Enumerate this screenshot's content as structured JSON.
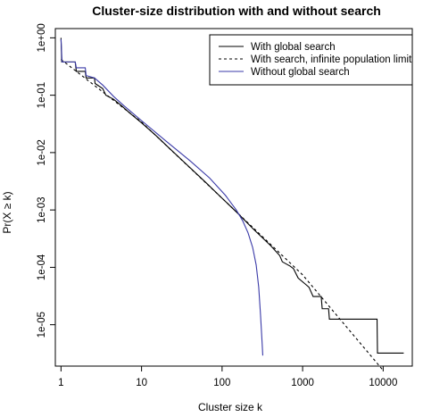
{
  "chart_data": {
    "type": "line",
    "title": "Cluster-size distribution with and without search",
    "xlabel": "Cluster size k",
    "ylabel": "Pr(X ≥ k)",
    "x_scale": "log",
    "y_scale": "log",
    "xlim": [
      0.85,
      23000
    ],
    "ylim": [
      1.9e-06,
      1.45
    ],
    "x_ticks": [
      {
        "value": 1,
        "label": "1"
      },
      {
        "value": 10,
        "label": "10"
      },
      {
        "value": 100,
        "label": "100"
      },
      {
        "value": 1000,
        "label": "1000"
      },
      {
        "value": 10000,
        "label": "10000"
      }
    ],
    "y_ticks": [
      {
        "value": 1,
        "label": "1e+00"
      },
      {
        "value": 0.1,
        "label": "1e-01"
      },
      {
        "value": 0.01,
        "label": "1e-02"
      },
      {
        "value": 0.001,
        "label": "1e-03"
      },
      {
        "value": 0.0001,
        "label": "1e-04"
      },
      {
        "value": 1e-05,
        "label": "1e-05"
      }
    ],
    "legend_position": "top-right",
    "series": [
      {
        "name": "With global search",
        "style": "solid",
        "color": "#000000",
        "points": [
          [
            1.0,
            1.0
          ],
          [
            1.02,
            0.38
          ],
          [
            1.5,
            0.38
          ],
          [
            1.55,
            0.26
          ],
          [
            2.0,
            0.26
          ],
          [
            2.05,
            0.2
          ],
          [
            2.6,
            0.2
          ],
          [
            2.65,
            0.16
          ],
          [
            3.3,
            0.13
          ],
          [
            3.6,
            0.1
          ],
          [
            4.5,
            0.085
          ],
          [
            5.6,
            0.066
          ],
          [
            7,
            0.05
          ],
          [
            10,
            0.033
          ],
          [
            15,
            0.02
          ],
          [
            22,
            0.012
          ],
          [
            35,
            0.0065
          ],
          [
            60,
            0.0032
          ],
          [
            100,
            0.0016
          ],
          [
            160,
            0.00085
          ],
          [
            250,
            0.00045
          ],
          [
            400,
            0.00024
          ],
          [
            520,
            0.00016
          ],
          [
            560,
            0.000125
          ],
          [
            700,
            0.000105
          ],
          [
            770,
            9.5e-05
          ],
          [
            880,
            6.5e-05
          ],
          [
            1100,
            5e-05
          ],
          [
            1200,
            4.5e-05
          ],
          [
            1350,
            3.1e-05
          ],
          [
            1700,
            3.1e-05
          ],
          [
            1750,
            1.9e-05
          ],
          [
            2100,
            1.9e-05
          ],
          [
            2150,
            1.25e-05
          ],
          [
            8400,
            1.25e-05
          ],
          [
            8500,
            3.2e-06
          ],
          [
            18000,
            3.2e-06
          ]
        ]
      },
      {
        "name": "With search, infinite population limit",
        "style": "dashed",
        "color": "#000000",
        "points": [
          [
            1.0,
            0.42
          ],
          [
            10,
            0.034
          ],
          [
            100,
            0.0016
          ],
          [
            1000,
            7.4e-05
          ],
          [
            10000,
            1.6e-06
          ]
        ]
      },
      {
        "name": "Without global search",
        "style": "solid",
        "color": "#3a3aa8",
        "points": [
          [
            1.0,
            0.95
          ],
          [
            1.03,
            0.38
          ],
          [
            1.5,
            0.38
          ],
          [
            1.55,
            0.3
          ],
          [
            2.0,
            0.3
          ],
          [
            2.05,
            0.22
          ],
          [
            2.6,
            0.2
          ],
          [
            3.3,
            0.15
          ],
          [
            4.5,
            0.095
          ],
          [
            6,
            0.066
          ],
          [
            10,
            0.036
          ],
          [
            20,
            0.016
          ],
          [
            40,
            0.0072
          ],
          [
            70,
            0.0036
          ],
          [
            110,
            0.0018
          ],
          [
            150,
            0.001
          ],
          [
            180,
            0.00065
          ],
          [
            210,
            0.0004
          ],
          [
            240,
            0.00022
          ],
          [
            265,
            0.00011
          ],
          [
            285,
            4.5e-05
          ],
          [
            300,
            1.5e-05
          ],
          [
            315,
            4.5e-06
          ],
          [
            320,
            2.9e-06
          ]
        ]
      }
    ]
  }
}
